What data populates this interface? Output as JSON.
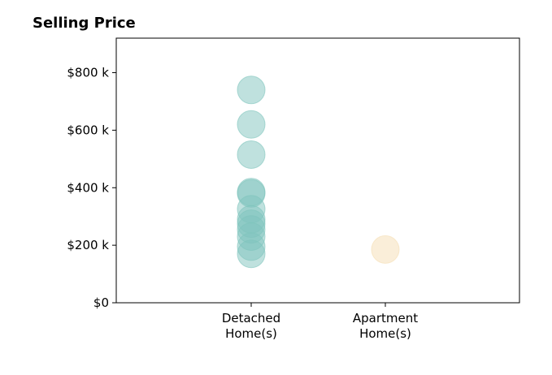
{
  "chart_data": {
    "type": "scatter",
    "title": "Selling Price",
    "xlabel": "",
    "ylabel": "",
    "categories": [
      [
        "Detached",
        "Home(s)"
      ],
      [
        "Apartment",
        "Home(s)"
      ]
    ],
    "yticks": [
      0,
      200000,
      400000,
      600000,
      800000
    ],
    "ytick_labels": [
      "$0",
      "$200 k",
      "$400 k",
      "$600 k",
      "$800 k"
    ],
    "ylim": [
      0,
      920000
    ],
    "grid": false,
    "legend": false,
    "series": [
      {
        "category_index": 0,
        "color": "#7fc4bd",
        "values": [
          740000,
          620000,
          515000,
          385000,
          380000,
          325000,
          290000,
          275000,
          255000,
          230000,
          195000,
          170000
        ]
      },
      {
        "category_index": 1,
        "color": "#f5deb3",
        "values": [
          185000
        ]
      }
    ]
  }
}
